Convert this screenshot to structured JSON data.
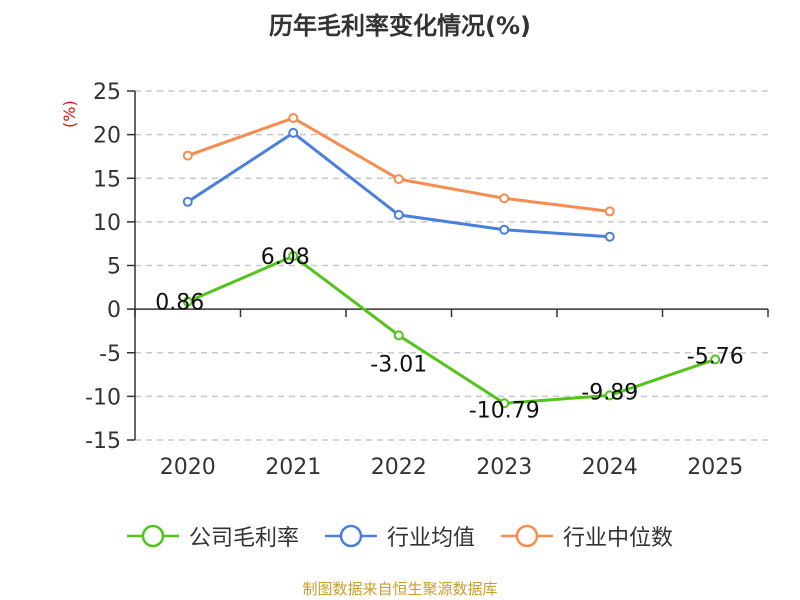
{
  "chart_data": {
    "type": "line",
    "title": "历年毛利率变化情况(%)",
    "ylabel": "(%)",
    "xlabel": "",
    "x": [
      "2020",
      "2021",
      "2022",
      "2023",
      "2024",
      "2025"
    ],
    "ylim": [
      -15,
      25
    ],
    "yticks": [
      "25",
      "20",
      "15",
      "10",
      "5",
      "0",
      "-5",
      "-10",
      "-15"
    ],
    "grid": true,
    "legend_position": "bottom",
    "series": [
      {
        "name": "公司毛利率",
        "color": "#52c41a",
        "values": [
          0.86,
          6.08,
          -3.01,
          -10.79,
          -9.89,
          -5.76
        ],
        "labels": [
          "0.86",
          "6.08",
          "-3.01",
          "-10.79",
          "-9.89",
          "-5.76"
        ]
      },
      {
        "name": "行业均值",
        "color": "#4a7fdc",
        "values": [
          12.3,
          20.2,
          10.8,
          9.1,
          8.3,
          null
        ]
      },
      {
        "name": "行业中位数",
        "color": "#f68c4e",
        "values": [
          17.6,
          21.9,
          14.9,
          12.7,
          11.2,
          null
        ]
      }
    ],
    "source": "制图数据来自恒生聚源数据库"
  }
}
